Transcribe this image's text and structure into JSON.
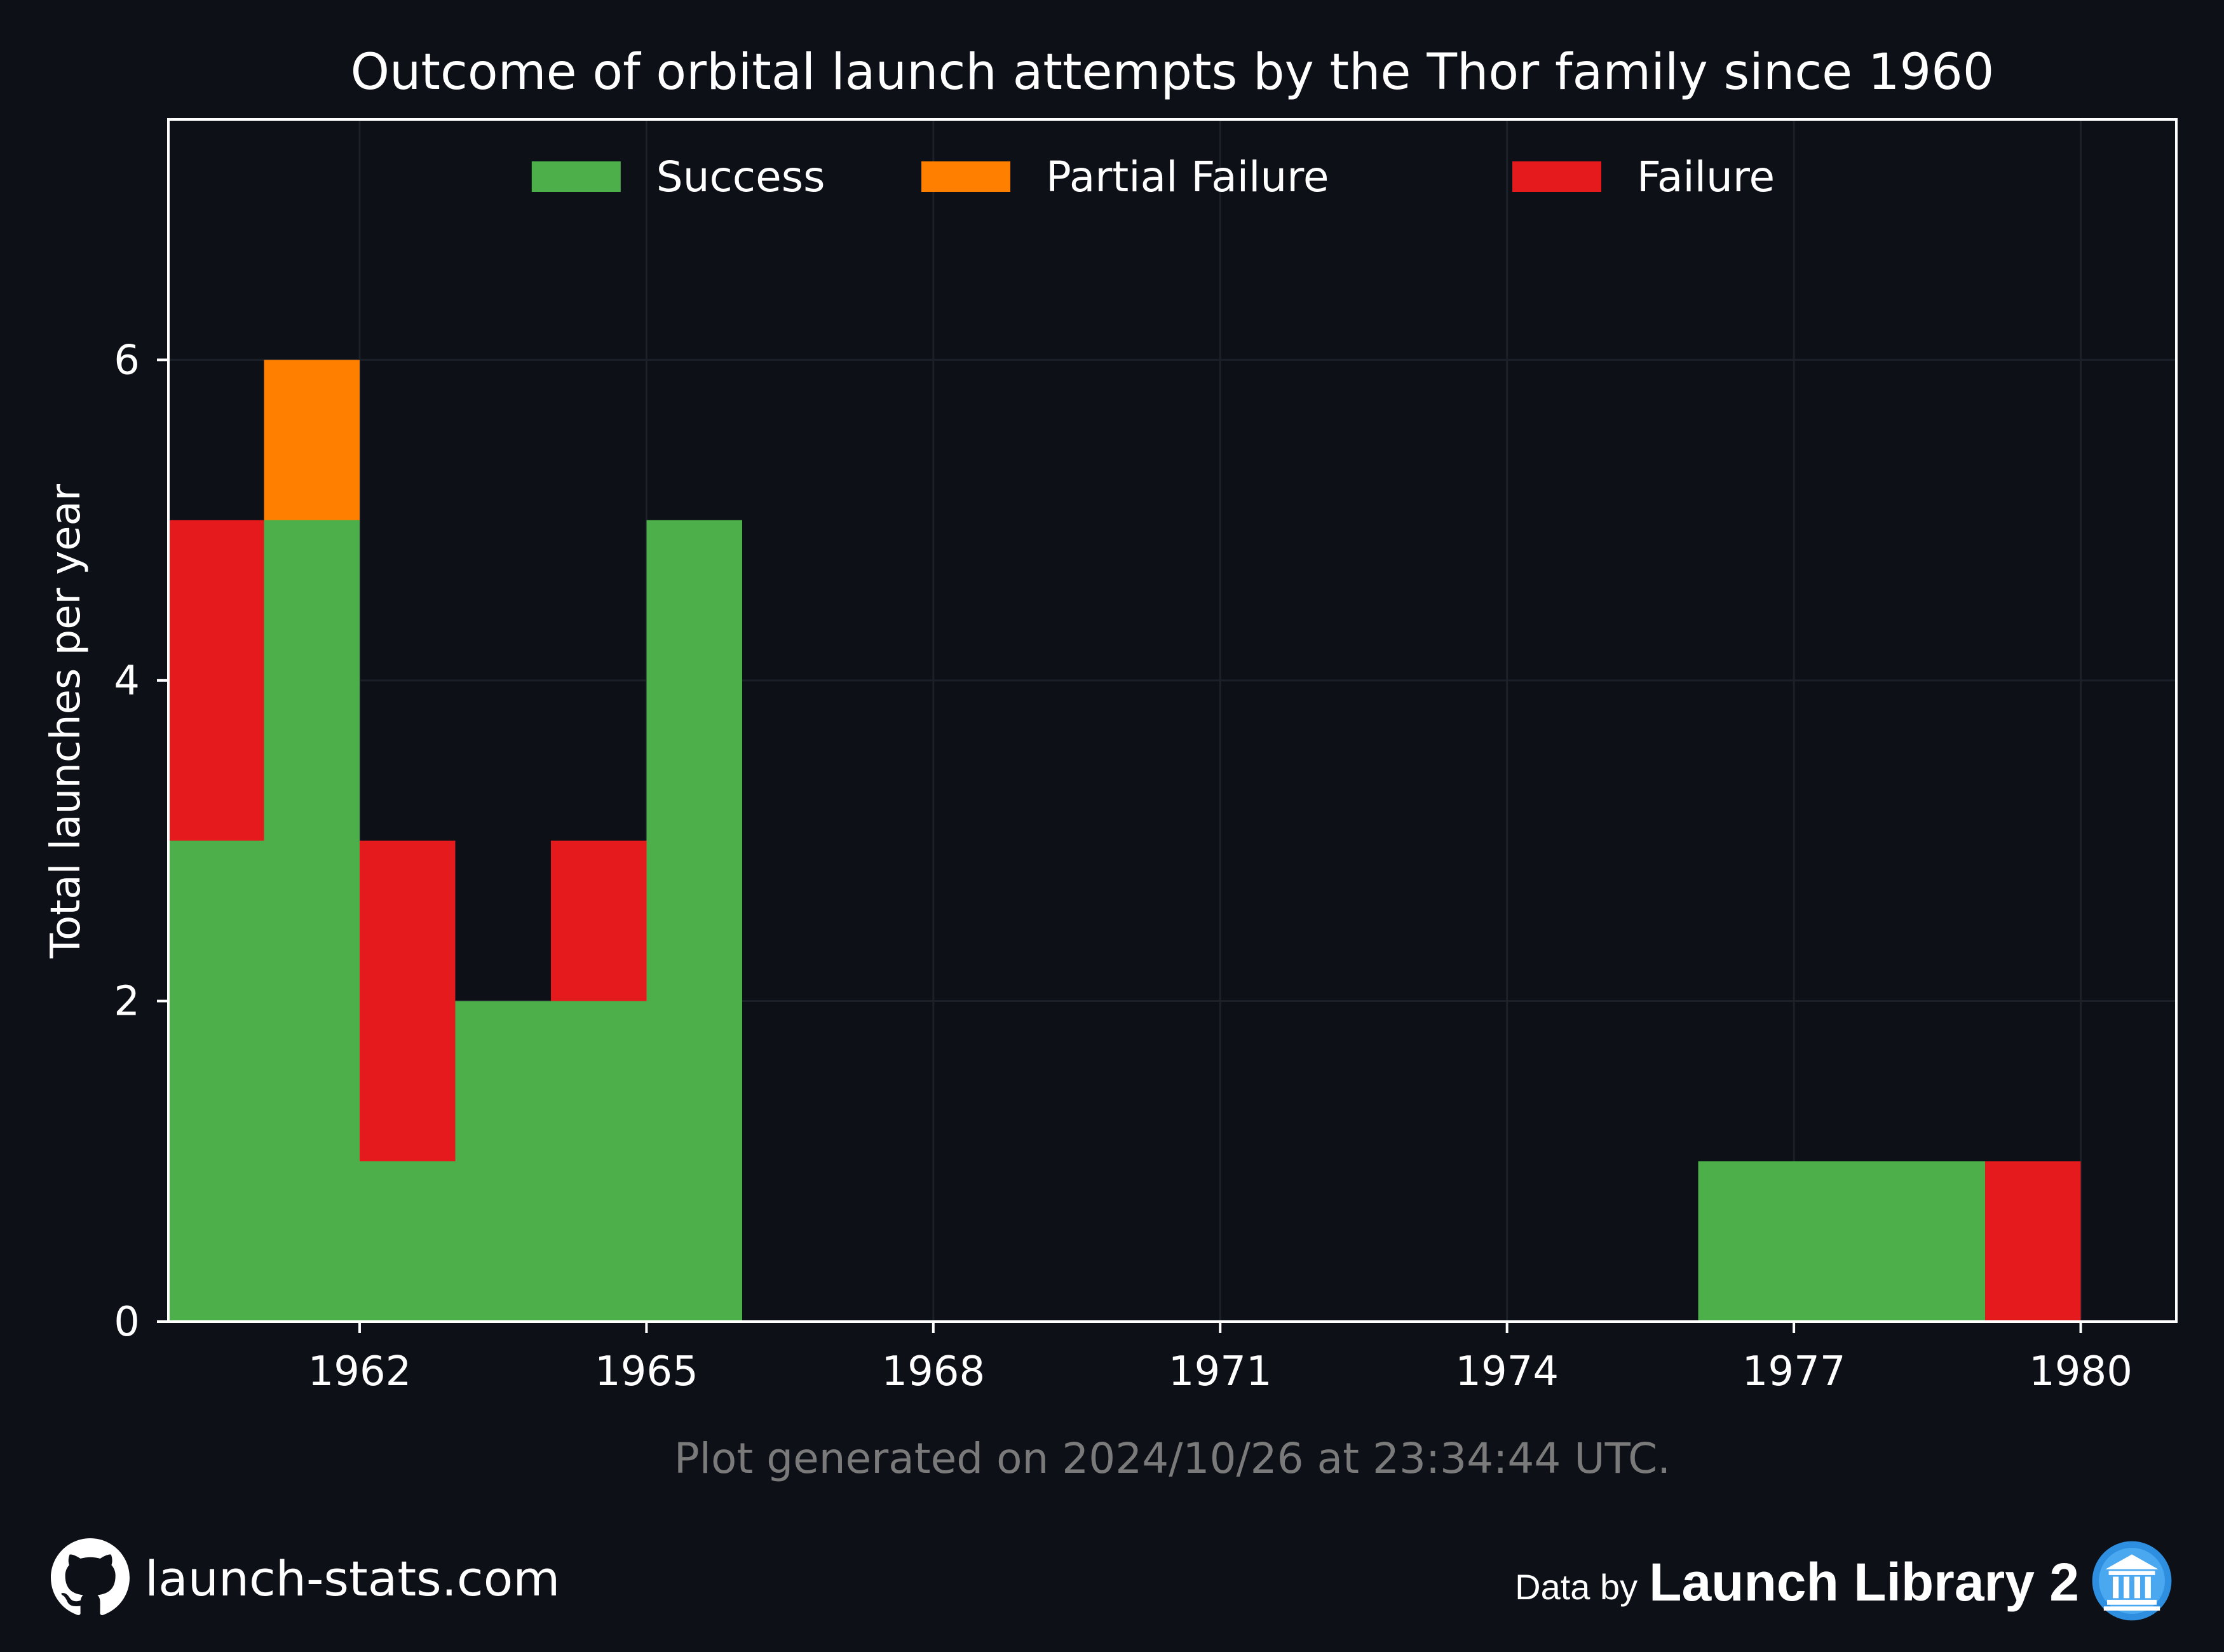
{
  "chart_data": {
    "type": "bar",
    "stacked": true,
    "title": "Outcome of orbital launch attempts by the Thor family since 1960",
    "xlabel": "",
    "ylabel": "Total launches per year",
    "x": [
      1961,
      1962,
      1963,
      1964,
      1965,
      1966,
      1967,
      1968,
      1969,
      1970,
      1971,
      1972,
      1973,
      1974,
      1975,
      1976,
      1977,
      1978,
      1979,
      1980
    ],
    "series": [
      {
        "name": "Success",
        "color": "#4daf4a",
        "values": [
          3,
          5,
          1,
          2,
          2,
          5,
          0,
          0,
          0,
          0,
          0,
          0,
          0,
          0,
          0,
          0,
          1,
          1,
          1,
          0
        ]
      },
      {
        "name": "Partial Failure",
        "color": "#ff7f00",
        "values": [
          0,
          1,
          0,
          0,
          0,
          0,
          0,
          0,
          0,
          0,
          0,
          0,
          0,
          0,
          0,
          0,
          0,
          0,
          0,
          0
        ]
      },
      {
        "name": "Failure",
        "color": "#e41a1c",
        "values": [
          2,
          0,
          2,
          0,
          1,
          0,
          0,
          0,
          0,
          0,
          0,
          0,
          0,
          0,
          0,
          0,
          0,
          0,
          0,
          1
        ]
      }
    ],
    "xticks": [
      1962,
      1965,
      1968,
      1971,
      1974,
      1977,
      1980
    ],
    "yticks": [
      0,
      2,
      4,
      6
    ],
    "xlim": [
      1960,
      1981
    ],
    "ylim": [
      0,
      7.5
    ],
    "grid": true,
    "legend_position": "top-center"
  },
  "footnote": "Plot generated on 2024/10/26 at 23:34:44 UTC.",
  "footer": {
    "site": "launch-stats.com",
    "data_by": "Data by",
    "provider": "Launch Library 2"
  },
  "icons": {
    "github": "github-icon",
    "launch_library": "launch-library-icon"
  },
  "colors": {
    "background": "#0d1017",
    "grid": "#1c2029",
    "axis": "#ffffff",
    "footnote": "#7a7a7a"
  }
}
